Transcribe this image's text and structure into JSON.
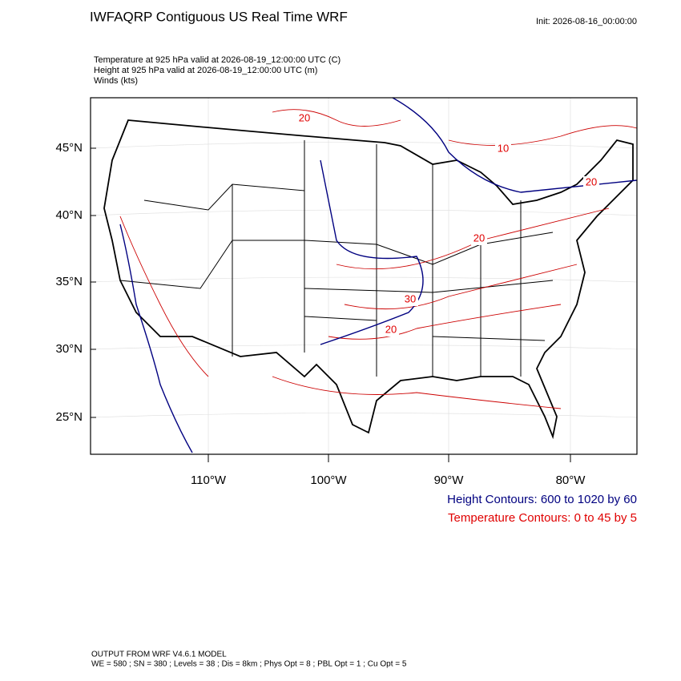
{
  "header": {
    "title": "IWFAQRP Contiguous US Real Time WRF",
    "init": "Init: 2026-08-16_00:00:00"
  },
  "subtitle": [
    "Temperature at 925 hPa valid at 2026-08-19_12:00:00 UTC   (C)",
    "Height at 925 hPa valid at 2026-08-19_12:00:00 UTC   (m)",
    "Winds   (kts)"
  ],
  "map": {
    "lat_labels": [
      "45°N",
      "40°N",
      "35°N",
      "30°N",
      "25°N"
    ],
    "lon_labels": [
      "110°W",
      "100°W",
      "90°W",
      "80°W"
    ],
    "contour_labels": [
      "20",
      "10",
      "20",
      "20",
      "30",
      "20"
    ]
  },
  "legend": {
    "height": "Height Contours: 600 to 1020 by 60",
    "temperature": "Temperature Contours: 0 to 45 by 5"
  },
  "footer": [
    "OUTPUT FROM WRF V4.6.1 MODEL",
    "WE = 580 ; SN = 380 ; Levels = 38 ; Dis = 8km ; Phys Opt = 8 ; PBL Opt = 1 ; Cu Opt = 5"
  ]
}
